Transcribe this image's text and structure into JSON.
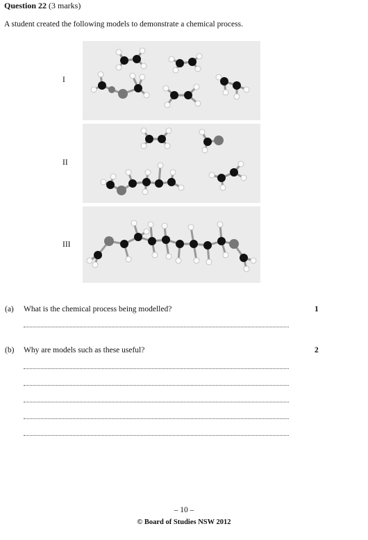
{
  "question": {
    "number_label": "Question 22",
    "marks_label": "(3 marks)",
    "intro": "A student created the following models to demonstrate a chemical process."
  },
  "models": [
    {
      "label": "I"
    },
    {
      "label": "II"
    },
    {
      "label": "III"
    }
  ],
  "parts": [
    {
      "label": "(a)",
      "text": "What is the chemical process being modelled?",
      "marks": "1"
    },
    {
      "label": "(b)",
      "text": "Why are models such as these useful?",
      "marks": "2"
    }
  ],
  "footer": {
    "page": "– 10 –",
    "copyright": "© Board of Studies NSW 2012"
  }
}
